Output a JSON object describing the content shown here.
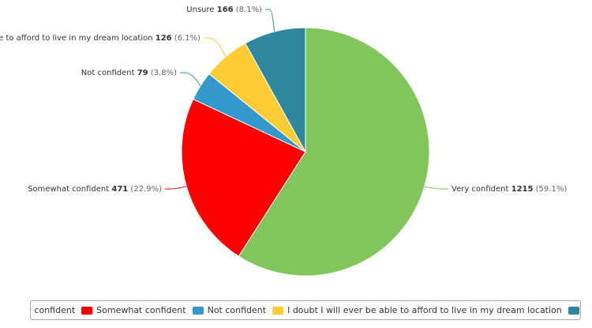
{
  "chart_data": {
    "type": "pie",
    "title": "",
    "slices": [
      {
        "name": "Very confident",
        "value": 1215,
        "percent": "59.1%",
        "color": "#80c65a"
      },
      {
        "name": "Somewhat confident",
        "value": 471,
        "percent": "22.9%",
        "color": "#ff0000"
      },
      {
        "name": "Not confident",
        "value": 79,
        "percent": "3.8%",
        "color": "#3399cc"
      },
      {
        "name": "I doubt I will ever be able to afford to live in my dream location",
        "value": 126,
        "percent": "6.1%",
        "color": "#ffcc33"
      },
      {
        "name": "Unsure",
        "value": 166,
        "percent": "8.1%",
        "color": "#2e879d"
      }
    ],
    "legend": "bottom"
  }
}
